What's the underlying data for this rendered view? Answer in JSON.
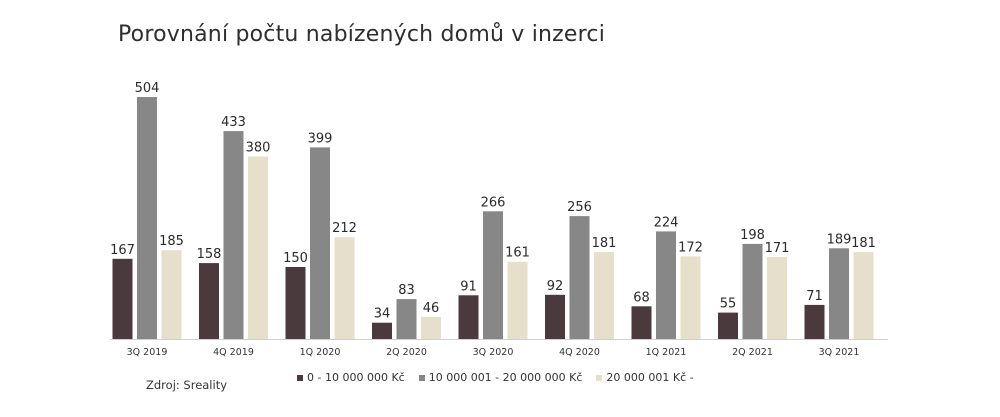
{
  "chart_data": {
    "type": "bar",
    "title": "Porovnání počtu nabízených domů v inzerci",
    "categories": [
      "3Q 2019",
      "4Q 2019",
      "1Q 2020",
      "2Q 2020",
      "3Q 2020",
      "4Q 2020",
      "1Q 2021",
      "2Q 2021",
      "3Q 2021"
    ],
    "series": [
      {
        "name": "0 - 10 000 000 Kč",
        "color": "#4a3a3e",
        "values": [
          167,
          158,
          150,
          34,
          91,
          92,
          68,
          55,
          71
        ]
      },
      {
        "name": "10 000 001 - 20 000 000 Kč",
        "color": "#878787",
        "values": [
          504,
          433,
          399,
          83,
          266,
          256,
          224,
          198,
          189
        ]
      },
      {
        "name": "20 000 001 Kč -",
        "color": "#e6dfcc",
        "values": [
          185,
          380,
          212,
          46,
          161,
          181,
          172,
          171,
          181
        ]
      }
    ],
    "ylim": [
      0,
      504
    ],
    "grid": false,
    "legend_position": "bottom",
    "source": "Zdroj: Sreality"
  }
}
